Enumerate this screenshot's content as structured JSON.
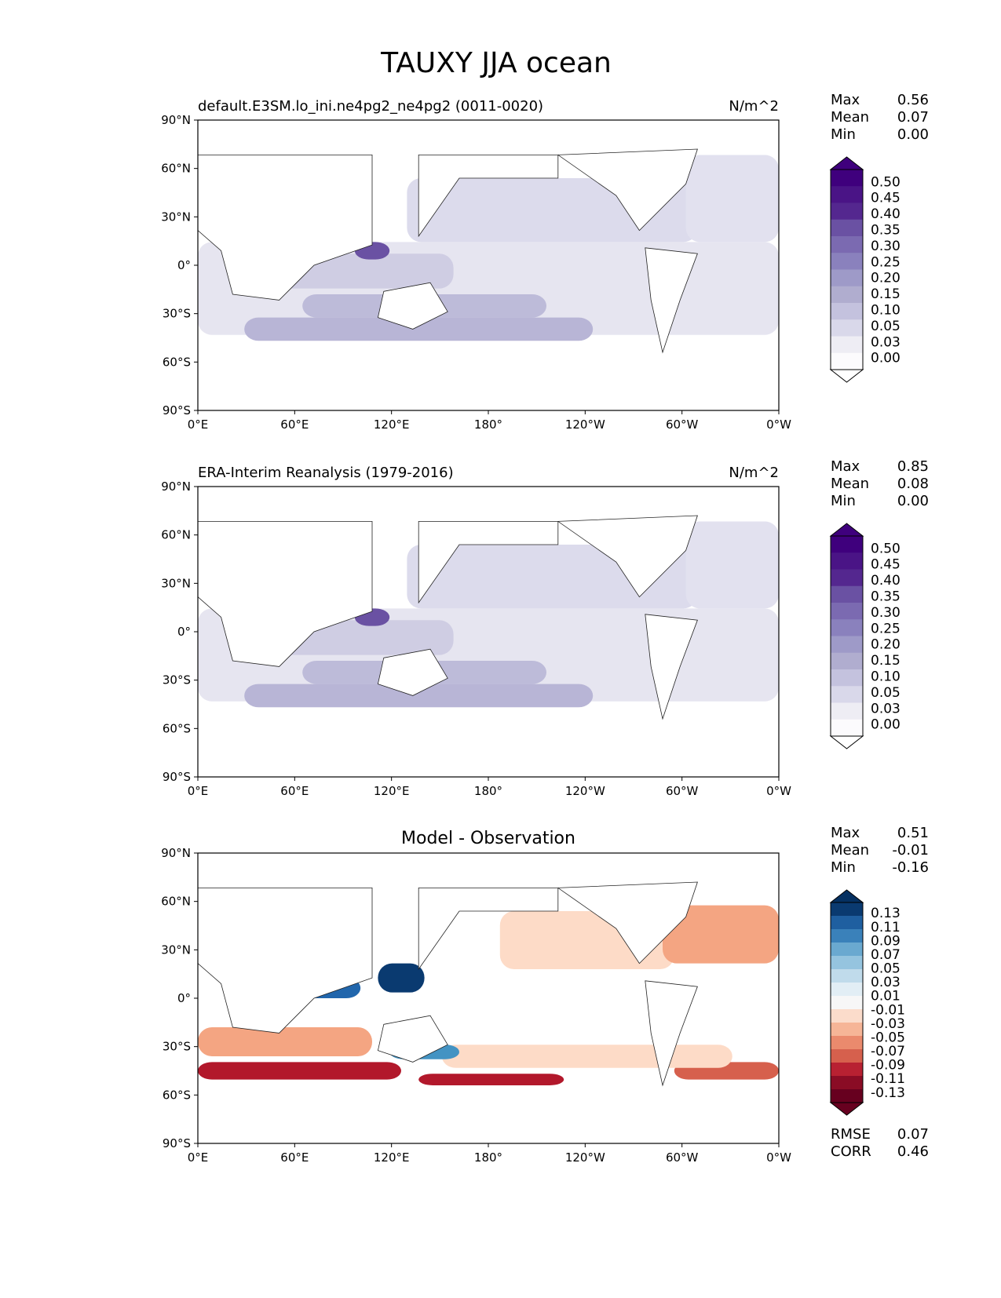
{
  "title": "TAUXY JJA ocean",
  "chart_data": [
    {
      "type": "heatmap",
      "id": "model",
      "title_left": "default.E3SM.lo_ini.ne4pg2_ne4pg2 (0011-0020)",
      "title_right": "N/m^2",
      "stats": [
        {
          "label": "Max",
          "value": "0.56"
        },
        {
          "label": "Mean",
          "value": "0.07"
        },
        {
          "label": "Min",
          "value": "0.00"
        }
      ],
      "colorbar": {
        "levels": [
          "0.50",
          "0.45",
          "0.40",
          "0.35",
          "0.30",
          "0.25",
          "0.20",
          "0.15",
          "0.10",
          "0.05",
          "0.03",
          "0.00"
        ],
        "colors": [
          "#3f007d",
          "#4a1486",
          "#54278f",
          "#6a51a3",
          "#7b6ab1",
          "#8a81bd",
          "#9e9ac8",
          "#b0adcf",
          "#c4c2de",
          "#d9d8ea",
          "#eeedf4",
          "#fcfbfd"
        ],
        "top_color": "#3f007d",
        "bottom_color": "#ffffff"
      },
      "lat_ticks": [
        "90°N",
        "60°N",
        "30°N",
        "0°",
        "30°S",
        "60°S",
        "90°S"
      ],
      "lon_ticks": [
        "0°E",
        "60°E",
        "120°E",
        "180°",
        "120°W",
        "60°W",
        "0°W"
      ],
      "xlim": [
        0,
        360
      ],
      "ylim": [
        -90,
        90
      ]
    },
    {
      "type": "heatmap",
      "id": "obs",
      "title_left": "ERA-Interim Reanalysis (1979-2016)",
      "title_right": "N/m^2",
      "stats": [
        {
          "label": "Max",
          "value": "0.85"
        },
        {
          "label": "Mean",
          "value": "0.08"
        },
        {
          "label": "Min",
          "value": "0.00"
        }
      ],
      "colorbar": {
        "levels": [
          "0.50",
          "0.45",
          "0.40",
          "0.35",
          "0.30",
          "0.25",
          "0.20",
          "0.15",
          "0.10",
          "0.05",
          "0.03",
          "0.00"
        ],
        "colors": [
          "#3f007d",
          "#4a1486",
          "#54278f",
          "#6a51a3",
          "#7b6ab1",
          "#8a81bd",
          "#9e9ac8",
          "#b0adcf",
          "#c4c2de",
          "#d9d8ea",
          "#eeedf4",
          "#fcfbfd"
        ],
        "top_color": "#3f007d",
        "bottom_color": "#ffffff"
      },
      "lat_ticks": [
        "90°N",
        "60°N",
        "30°N",
        "0°",
        "30°S",
        "60°S",
        "90°S"
      ],
      "lon_ticks": [
        "0°E",
        "60°E",
        "120°E",
        "180°",
        "120°W",
        "60°W",
        "0°W"
      ],
      "xlim": [
        0,
        360
      ],
      "ylim": [
        -90,
        90
      ]
    },
    {
      "type": "heatmap",
      "id": "diff",
      "title_center": "Model - Observation",
      "stats": [
        {
          "label": "Max",
          "value": "0.51"
        },
        {
          "label": "Mean",
          "value": "-0.01"
        },
        {
          "label": "Min",
          "value": "-0.16"
        }
      ],
      "colorbar": {
        "levels": [
          "0.13",
          "0.11",
          "0.09",
          "0.07",
          "0.05",
          "0.03",
          "0.01",
          "-0.01",
          "-0.03",
          "-0.05",
          "-0.07",
          "-0.09",
          "-0.11",
          "-0.13"
        ],
        "colors": [
          "#0a3a70",
          "#1f5fa0",
          "#3a81ba",
          "#6aa9d0",
          "#95c4df",
          "#c0dbeb",
          "#e2eef5",
          "#f7f7f7",
          "#fbdccb",
          "#f6b597",
          "#ea8a6d",
          "#d6604d",
          "#b82132",
          "#8a0c25",
          "#67001f"
        ],
        "top_color": "#053061",
        "bottom_color": "#67001f"
      },
      "metrics": [
        {
          "label": "RMSE",
          "value": "0.07"
        },
        {
          "label": "CORR",
          "value": "0.46"
        }
      ],
      "lat_ticks": [
        "90°N",
        "60°N",
        "30°N",
        "0°",
        "30°S",
        "60°S",
        "90°S"
      ],
      "lon_ticks": [
        "0°E",
        "60°E",
        "120°E",
        "180°",
        "120°W",
        "60°W",
        "0°W"
      ],
      "xlim": [
        0,
        360
      ],
      "ylim": [
        -90,
        90
      ]
    }
  ]
}
